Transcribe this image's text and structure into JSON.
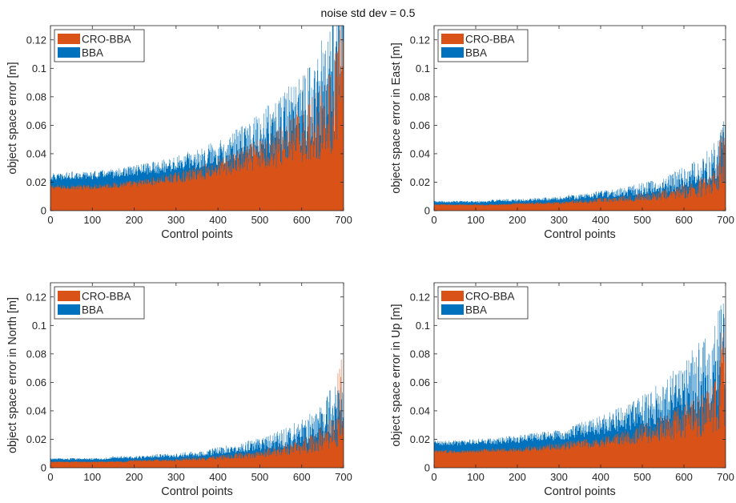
{
  "figure_title": "noise std dev = 0.5",
  "colors": {
    "cro_bba": "#D95319",
    "bba": "#0072BD",
    "axis": "#262626"
  },
  "chart_data": [
    {
      "type": "bar",
      "title": "",
      "xlabel": "Control points",
      "ylabel": "object space error [m]",
      "xlim": [
        0,
        700
      ],
      "ylim": [
        0,
        0.13
      ],
      "xticks": [
        0,
        100,
        200,
        300,
        400,
        500,
        600,
        700
      ],
      "xtick_labels": [
        "0",
        "100",
        "200",
        "300",
        "400",
        "500",
        "600",
        "700"
      ],
      "yticks": [
        0,
        0.02,
        0.04,
        0.06,
        0.08,
        0.1,
        0.12
      ],
      "ytick_labels": [
        "0",
        "0.02",
        "0.04",
        "0.06",
        "0.08",
        "0.1",
        "0.12"
      ],
      "grid": false,
      "legend_position": "top-left",
      "x": [
        0,
        25,
        50,
        75,
        100,
        125,
        150,
        175,
        200,
        225,
        250,
        275,
        300,
        325,
        350,
        375,
        400,
        425,
        450,
        475,
        500,
        525,
        550,
        575,
        600,
        625,
        650,
        675,
        700
      ],
      "series": [
        {
          "name": "CRO-BBA",
          "color": "#D95319",
          "values": [
            0.016,
            0.016,
            0.016,
            0.016,
            0.016,
            0.017,
            0.017,
            0.018,
            0.018,
            0.019,
            0.02,
            0.021,
            0.022,
            0.023,
            0.025,
            0.026,
            0.028,
            0.03,
            0.032,
            0.034,
            0.036,
            0.038,
            0.041,
            0.044,
            0.047,
            0.051,
            0.055,
            0.062,
            0.085
          ]
        },
        {
          "name": "BBA",
          "color": "#0072BD",
          "values": [
            0.023,
            0.023,
            0.024,
            0.024,
            0.024,
            0.025,
            0.025,
            0.026,
            0.027,
            0.028,
            0.029,
            0.03,
            0.031,
            0.033,
            0.034,
            0.036,
            0.038,
            0.04,
            0.043,
            0.046,
            0.049,
            0.052,
            0.055,
            0.059,
            0.063,
            0.068,
            0.074,
            0.082,
            0.11
          ]
        }
      ],
      "peak_values": [
        0.128,
        0.105
      ]
    },
    {
      "type": "bar",
      "title": "",
      "xlabel": "Control points",
      "ylabel": "object space error in East [m]",
      "xlim": [
        0,
        700
      ],
      "ylim": [
        0,
        0.13
      ],
      "xticks": [
        0,
        100,
        200,
        300,
        400,
        500,
        600,
        700
      ],
      "xtick_labels": [
        "0",
        "100",
        "200",
        "300",
        "400",
        "500",
        "600",
        "700"
      ],
      "yticks": [
        0,
        0.02,
        0.04,
        0.06,
        0.08,
        0.1,
        0.12
      ],
      "ytick_labels": [
        "0",
        "0.02",
        "0.04",
        "0.06",
        "0.08",
        "0.1",
        "0.12"
      ],
      "grid": false,
      "legend_position": "top-left",
      "x": [
        0,
        25,
        50,
        75,
        100,
        125,
        150,
        175,
        200,
        225,
        250,
        275,
        300,
        325,
        350,
        375,
        400,
        425,
        450,
        475,
        500,
        525,
        550,
        575,
        600,
        625,
        650,
        675,
        700
      ],
      "series": [
        {
          "name": "CRO-BBA",
          "color": "#D95319",
          "values": [
            0.004,
            0.004,
            0.004,
            0.004,
            0.004,
            0.004,
            0.004,
            0.004,
            0.005,
            0.005,
            0.005,
            0.005,
            0.005,
            0.006,
            0.006,
            0.006,
            0.007,
            0.007,
            0.008,
            0.008,
            0.009,
            0.009,
            0.01,
            0.011,
            0.012,
            0.013,
            0.015,
            0.018,
            0.03
          ]
        },
        {
          "name": "BBA",
          "color": "#0072BD",
          "values": [
            0.006,
            0.006,
            0.006,
            0.006,
            0.006,
            0.006,
            0.007,
            0.007,
            0.007,
            0.007,
            0.008,
            0.008,
            0.008,
            0.009,
            0.009,
            0.01,
            0.011,
            0.011,
            0.012,
            0.013,
            0.014,
            0.015,
            0.016,
            0.018,
            0.02,
            0.022,
            0.025,
            0.03,
            0.045
          ]
        }
      ],
      "peak_values": [
        0.061,
        0.045
      ]
    },
    {
      "type": "bar",
      "title": "",
      "xlabel": "Control points",
      "ylabel": "object space error in North [m]",
      "xlim": [
        0,
        700
      ],
      "ylim": [
        0,
        0.13
      ],
      "xticks": [
        0,
        100,
        200,
        300,
        400,
        500,
        600,
        700
      ],
      "xtick_labels": [
        "0",
        "100",
        "200",
        "300",
        "400",
        "500",
        "600",
        "700"
      ],
      "yticks": [
        0,
        0.02,
        0.04,
        0.06,
        0.08,
        0.1,
        0.12
      ],
      "ytick_labels": [
        "0",
        "0.02",
        "0.04",
        "0.06",
        "0.08",
        "0.1",
        "0.12"
      ],
      "grid": false,
      "legend_position": "top-left",
      "x": [
        0,
        25,
        50,
        75,
        100,
        125,
        150,
        175,
        200,
        225,
        250,
        275,
        300,
        325,
        350,
        375,
        400,
        425,
        450,
        475,
        500,
        525,
        550,
        575,
        600,
        625,
        650,
        675,
        700
      ],
      "series": [
        {
          "name": "CRO-BBA",
          "color": "#D95319",
          "values": [
            0.004,
            0.004,
            0.004,
            0.004,
            0.004,
            0.004,
            0.004,
            0.004,
            0.005,
            0.005,
            0.005,
            0.005,
            0.005,
            0.006,
            0.006,
            0.006,
            0.007,
            0.007,
            0.008,
            0.008,
            0.009,
            0.01,
            0.011,
            0.012,
            0.013,
            0.015,
            0.018,
            0.022,
            0.02
          ]
        },
        {
          "name": "BBA",
          "color": "#0072BD",
          "values": [
            0.006,
            0.006,
            0.006,
            0.006,
            0.006,
            0.006,
            0.007,
            0.007,
            0.007,
            0.007,
            0.008,
            0.008,
            0.008,
            0.009,
            0.009,
            0.01,
            0.011,
            0.012,
            0.013,
            0.014,
            0.015,
            0.016,
            0.018,
            0.02,
            0.022,
            0.025,
            0.029,
            0.035,
            0.03
          ]
        }
      ],
      "peak_values": [
        0.081,
        0.065
      ]
    },
    {
      "type": "bar",
      "title": "",
      "xlabel": "Control points",
      "ylabel": "object space error in Up [m]",
      "xlim": [
        0,
        700
      ],
      "ylim": [
        0,
        0.13
      ],
      "xticks": [
        0,
        100,
        200,
        300,
        400,
        500,
        600,
        700
      ],
      "xtick_labels": [
        "0",
        "100",
        "200",
        "300",
        "400",
        "500",
        "600",
        "700"
      ],
      "yticks": [
        0,
        0.02,
        0.04,
        0.06,
        0.08,
        0.1,
        0.12
      ],
      "ytick_labels": [
        "0",
        "0.02",
        "0.04",
        "0.06",
        "0.08",
        "0.1",
        "0.12"
      ],
      "grid": false,
      "legend_position": "top-left",
      "x": [
        0,
        25,
        50,
        75,
        100,
        125,
        150,
        175,
        200,
        225,
        250,
        275,
        300,
        325,
        350,
        375,
        400,
        425,
        450,
        475,
        500,
        525,
        550,
        575,
        600,
        625,
        650,
        675,
        700
      ],
      "series": [
        {
          "name": "CRO-BBA",
          "color": "#D95319",
          "values": [
            0.011,
            0.011,
            0.011,
            0.011,
            0.011,
            0.012,
            0.012,
            0.012,
            0.012,
            0.013,
            0.013,
            0.014,
            0.014,
            0.015,
            0.016,
            0.016,
            0.017,
            0.018,
            0.019,
            0.02,
            0.022,
            0.023,
            0.025,
            0.027,
            0.029,
            0.031,
            0.034,
            0.037,
            0.045
          ]
        },
        {
          "name": "BBA",
          "color": "#0072BD",
          "values": [
            0.017,
            0.017,
            0.017,
            0.017,
            0.018,
            0.018,
            0.018,
            0.019,
            0.019,
            0.02,
            0.021,
            0.021,
            0.022,
            0.023,
            0.025,
            0.026,
            0.028,
            0.03,
            0.032,
            0.034,
            0.036,
            0.039,
            0.042,
            0.045,
            0.049,
            0.053,
            0.058,
            0.064,
            0.075
          ]
        }
      ],
      "peak_values": [
        0.097,
        0.089
      ]
    }
  ]
}
